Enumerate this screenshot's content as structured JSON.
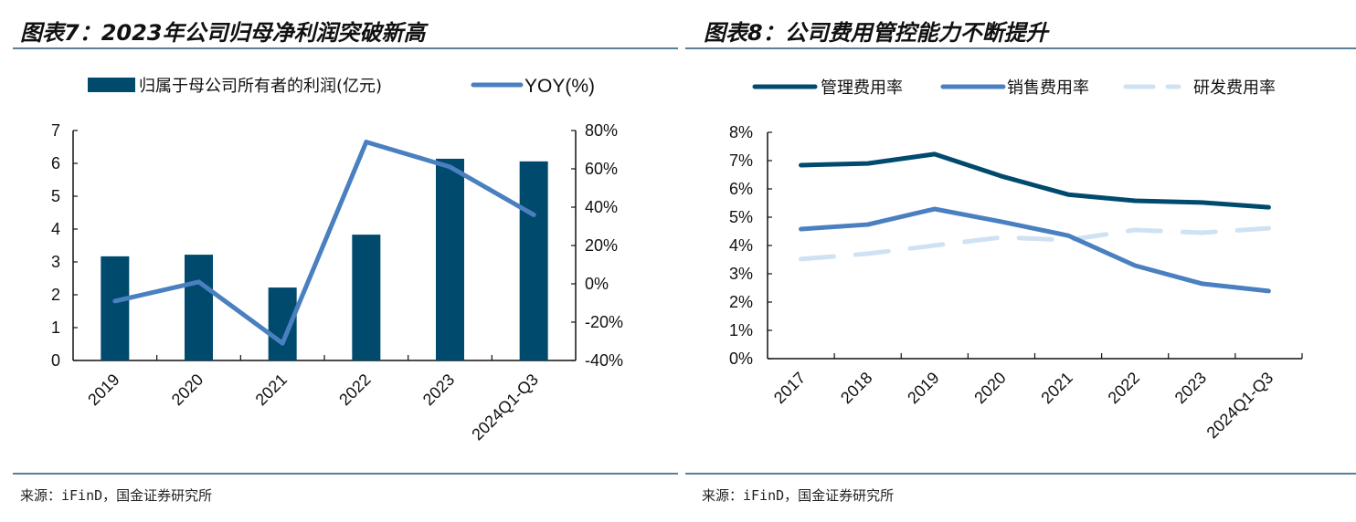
{
  "footer_source": "来源：iFinD，国金证券研究所",
  "chart_data": [
    {
      "type": "bar",
      "title": "图表7：2023年公司归母净利润突破新高",
      "source": "来源：iFinD，国金证券研究所",
      "categories": [
        "2019",
        "2020",
        "2021",
        "2022",
        "2023",
        "2024Q1-Q3"
      ],
      "series": [
        {
          "name": "归属于母公司所有者的利润(亿元)",
          "type": "bar",
          "axis": "left",
          "color": "#004a6e",
          "values": [
            3.17,
            3.22,
            2.22,
            3.83,
            6.14,
            6.06
          ]
        },
        {
          "name": "YOY(%)",
          "type": "line",
          "axis": "right",
          "color": "#4a80c0",
          "values": [
            -9,
            1,
            -31,
            74,
            61,
            36
          ]
        }
      ],
      "y_left": {
        "ylim": [
          0,
          7
        ],
        "ticks": [
          "0",
          "1",
          "2",
          "3",
          "4",
          "5",
          "6",
          "7"
        ]
      },
      "y_right": {
        "ylim": [
          -40,
          80
        ],
        "ticks": [
          "-40%",
          "-20%",
          "0%",
          "20%",
          "40%",
          "60%",
          "80%"
        ]
      },
      "xlabel": "",
      "ylabel": "",
      "legend_position": "top-center",
      "grid": false
    },
    {
      "type": "line",
      "title": "图表8：公司费用管控能力不断提升",
      "source": "来源：iFinD，国金证券研究所",
      "categories": [
        "2017",
        "2018",
        "2019",
        "2020",
        "2021",
        "2022",
        "2023",
        "2024Q1-Q3"
      ],
      "series": [
        {
          "name": "管理费用率",
          "color": "#004a6e",
          "dash": "solid",
          "values": [
            6.84,
            6.9,
            7.23,
            6.45,
            5.8,
            5.58,
            5.52,
            5.35
          ]
        },
        {
          "name": "销售费用率",
          "color": "#4a80c0",
          "dash": "solid",
          "values": [
            4.58,
            4.74,
            5.29,
            4.84,
            4.35,
            3.29,
            2.65,
            2.39
          ]
        },
        {
          "name": "研发费用率",
          "color": "#cfe2f3",
          "dash": "dashed",
          "values": [
            3.52,
            3.71,
            4.0,
            4.29,
            4.19,
            4.55,
            4.45,
            4.61
          ]
        }
      ],
      "y": {
        "ylim": [
          0,
          8
        ],
        "ticks": [
          "0%",
          "1%",
          "2%",
          "3%",
          "4%",
          "5%",
          "6%",
          "7%",
          "8%"
        ]
      },
      "xlabel": "",
      "ylabel": "",
      "legend_position": "top-center",
      "grid": false
    }
  ]
}
